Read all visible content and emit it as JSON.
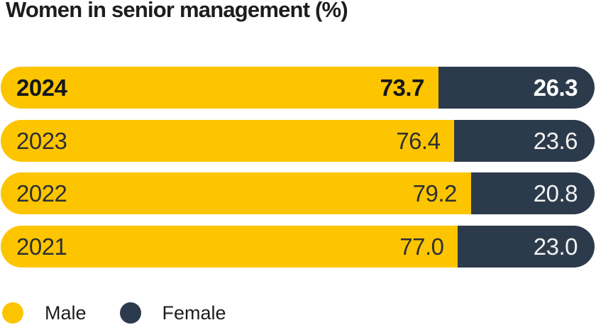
{
  "title": "Women in senior management (%)",
  "colors": {
    "male": "#FDC500",
    "female": "#2C3B4C",
    "title_text": "#1D1D1B",
    "bar_text_dark": "#2E3033",
    "bar_text_light": "#F2F2F2",
    "emphasis_text": "#15171A",
    "background": "#FFFFFF"
  },
  "chart_data": {
    "type": "bar",
    "orientation": "horizontal-stacked",
    "title": "Women in senior management (%)",
    "categories": [
      "2024",
      "2023",
      "2022",
      "2021"
    ],
    "series": [
      {
        "name": "Male",
        "color": "#FDC500",
        "values": [
          73.7,
          76.4,
          79.2,
          77.0
        ]
      },
      {
        "name": "Female",
        "color": "#2C3B4C",
        "values": [
          26.3,
          23.6,
          20.8,
          23.0
        ]
      }
    ],
    "xlim": [
      0,
      100
    ],
    "value_labels_shown": true,
    "highlight_category": "2024",
    "grid": false,
    "axes_shown": false,
    "legend_position": "bottom-left"
  },
  "bars": [
    {
      "year": "2024",
      "male_label": "73.7",
      "female_label": "26.3",
      "male_pct": 73.7,
      "emphasis": true
    },
    {
      "year": "2023",
      "male_label": "76.4",
      "female_label": "23.6",
      "male_pct": 76.4,
      "emphasis": false
    },
    {
      "year": "2022",
      "male_label": "79.2",
      "female_label": "20.8",
      "male_pct": 79.2,
      "emphasis": false
    },
    {
      "year": "2021",
      "male_label": "77.0",
      "female_label": "23.0",
      "male_pct": 77.0,
      "emphasis": false
    }
  ],
  "legend": [
    {
      "label": "Male",
      "color": "#FDC500"
    },
    {
      "label": "Female",
      "color": "#2C3B4C"
    }
  ]
}
